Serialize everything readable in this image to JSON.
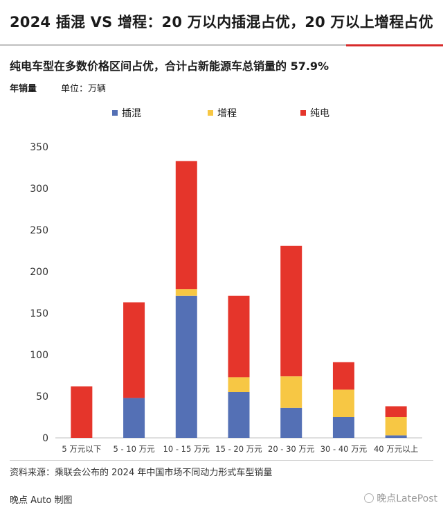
{
  "header": {
    "title": "2024 插混 VS 增程：20 万以内插混占优，20 万以上增程占优",
    "subtitle": "纯电车型在多数价格区间占优，合计占新能源车总销量的 57.9%",
    "ylabel": "年销量",
    "unit": "单位：万辆"
  },
  "footer": {
    "source": "资料来源：乘联会公布的 2024 年中国市场不同动力形式车型销量",
    "credit": "晚点 Auto 制图",
    "watermark": "晚点LatePost"
  },
  "colors": {
    "phev": "#5470b5",
    "erev": "#f7c744",
    "bev": "#e5352b",
    "axis": "#bfbfbf",
    "text": "#333333"
  },
  "chart_data": {
    "type": "bar",
    "stacked": true,
    "title": "纯电车型在多数价格区间占优，合计占新能源车总销量的 57.9%",
    "ylabel": "年销量",
    "unit": "单位：万辆",
    "categories": [
      "5 万元以下",
      "5 - 10 万元",
      "10 - 15 万元",
      "15 - 20 万元",
      "20 - 30 万元",
      "30 - 40 万元",
      "40 万元以上"
    ],
    "series": [
      {
        "name": "插混",
        "color": "#5470b5",
        "values": [
          0,
          48,
          171,
          55,
          36,
          25,
          3
        ]
      },
      {
        "name": "增程",
        "color": "#f7c744",
        "values": [
          0,
          0,
          8,
          18,
          38,
          33,
          22
        ]
      },
      {
        "name": "纯电",
        "color": "#e5352b",
        "values": [
          62,
          115,
          154,
          98,
          157,
          33,
          13
        ]
      }
    ],
    "ylim": [
      0,
      350
    ],
    "yticks": [
      0,
      50,
      100,
      150,
      200,
      250,
      300,
      350
    ],
    "grid": false,
    "legend": "top-center"
  }
}
